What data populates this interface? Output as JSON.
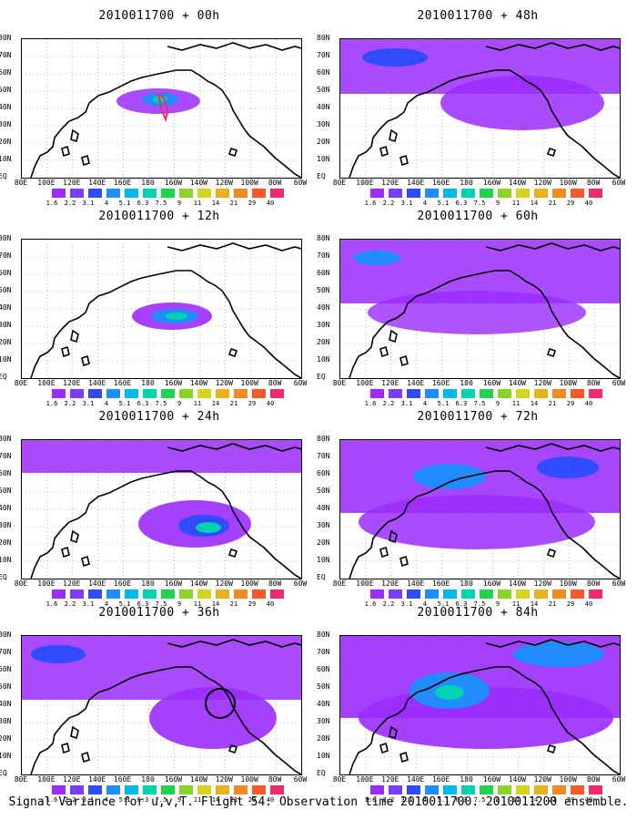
{
  "caption": "Signal Variance for u,v,T. Flight 54. Observation time 2010011700. 2010011200 ensemble.",
  "lat_labels": [
    "80N",
    "70N",
    "60N",
    "50N",
    "40N",
    "30N",
    "20N",
    "10N",
    "EQ"
  ],
  "lon_labels": [
    "80E",
    "100E",
    "120E",
    "140E",
    "160E",
    "180",
    "160W",
    "140W",
    "120W",
    "100W",
    "80W",
    "60W"
  ],
  "colorbar": {
    "labels": [
      "1.6",
      "2.2",
      "3.1",
      "4",
      "5.1",
      "6.3",
      "7.5",
      "9",
      "11",
      "14",
      "21",
      "29",
      "40"
    ],
    "colors": [
      "#9b2bff",
      "#7a3cff",
      "#2f4bff",
      "#1f8cff",
      "#00b9e6",
      "#00d3b0",
      "#1fd34f",
      "#8ad42a",
      "#d3d41e",
      "#e6b21e",
      "#f08a23",
      "#f5582a",
      "#ef2a6a"
    ]
  },
  "panels": [
    {
      "title": "2010011700 + 00h",
      "hour": 0
    },
    {
      "title": "2010011700 + 48h",
      "hour": 48
    },
    {
      "title": "2010011700 + 12h",
      "hour": 12
    },
    {
      "title": "2010011700 + 60h",
      "hour": 60
    },
    {
      "title": "2010011700 + 24h",
      "hour": 24
    },
    {
      "title": "2010011700 + 72h",
      "hour": 72
    },
    {
      "title": "2010011700 + 36h",
      "hour": 36
    },
    {
      "title": "2010011700 + 84h",
      "hour": 84
    }
  ]
}
